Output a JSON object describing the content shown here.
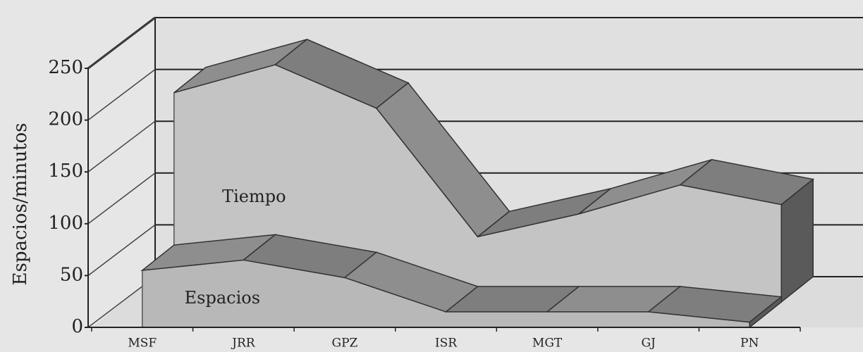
{
  "chart_data": {
    "type": "area3d",
    "y_label": "Espacios/minutos",
    "categories": [
      "MSF",
      "JRR",
      "GPZ",
      "ISR",
      "MGT",
      "GJ",
      "PN"
    ],
    "series": [
      {
        "name": "Tiempo",
        "color": "#c4c4c4",
        "values": [
          202,
          229,
          187,
          63,
          85,
          113,
          94
        ]
      },
      {
        "name": "Espacios",
        "color": "#b8b8b8",
        "values": [
          55,
          65,
          48,
          15,
          15,
          15,
          5
        ]
      }
    ],
    "ylim": [
      0,
      250
    ],
    "yticks": [
      0,
      50,
      100,
      150,
      200,
      250
    ],
    "grid": true
  }
}
